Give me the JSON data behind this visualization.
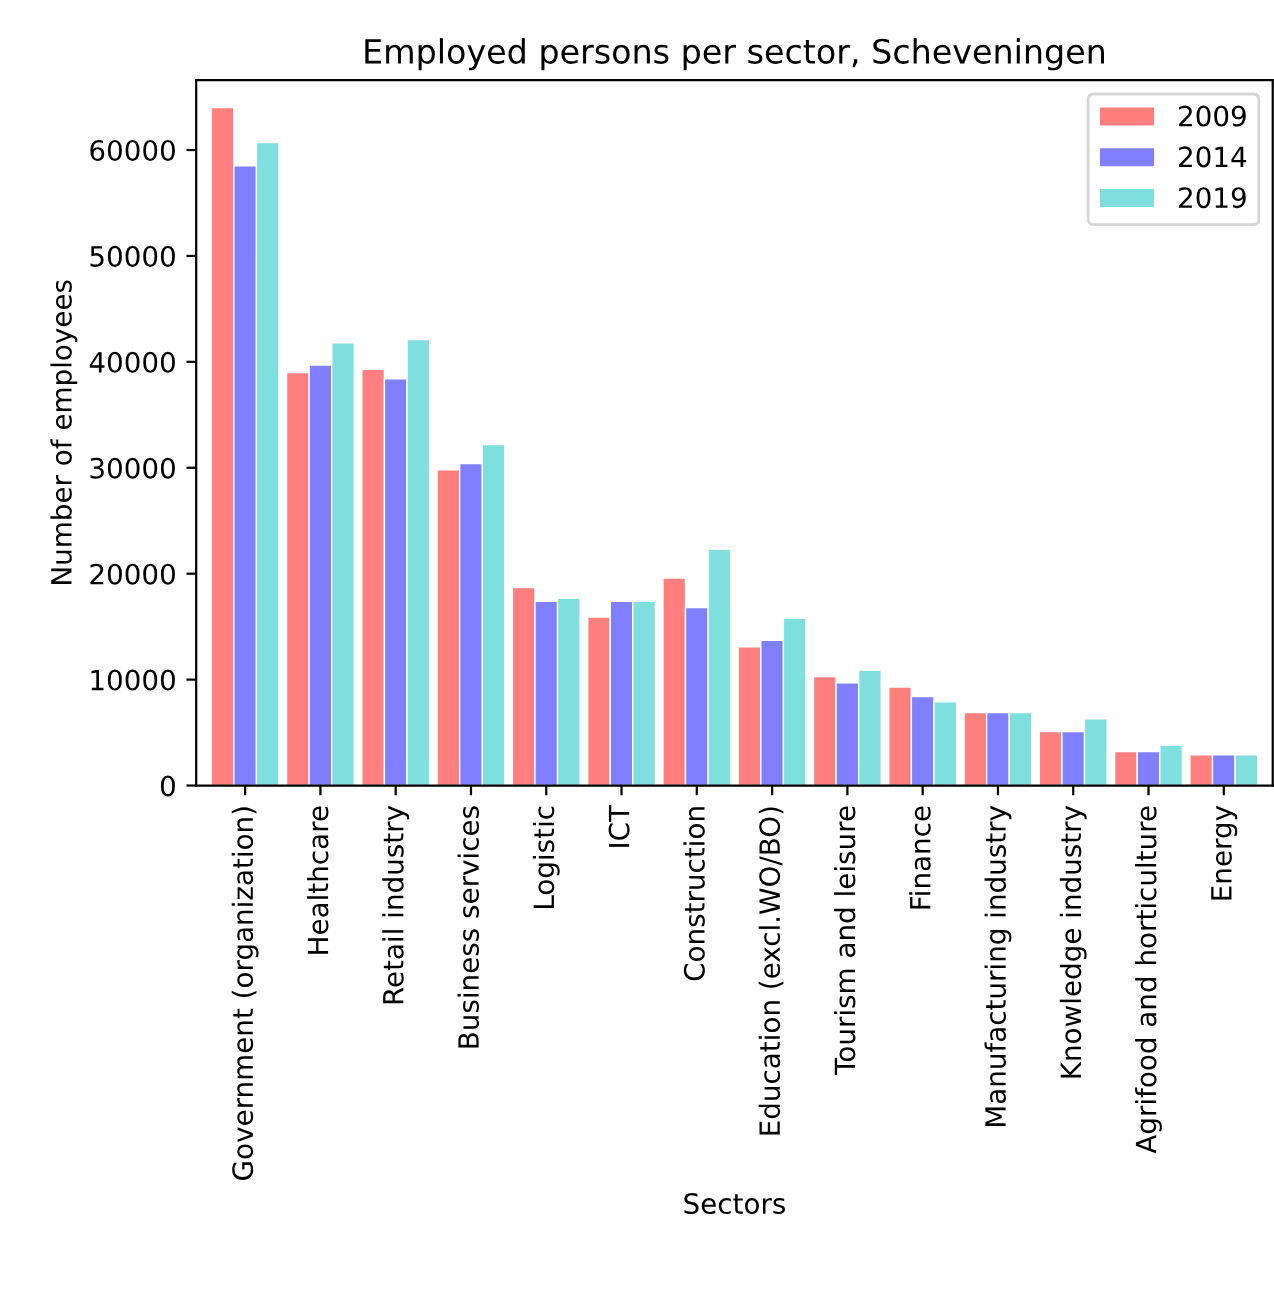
{
  "chart_data": {
    "type": "bar",
    "title": "Employed persons per sector, Scheveningen",
    "xlabel": "Sectors",
    "ylabel": "Number of employees",
    "categories": [
      "Government (organization)",
      "Healthcare",
      "Retail industry",
      "Business services",
      "Logistic",
      "ICT",
      "Construction",
      "Education (excl.WO/BO)",
      "Tourism and leisure",
      "Finance",
      "Manufacturing industry",
      "Knowledge industry",
      "Agrifood and horticulture",
      "Energy"
    ],
    "series": [
      {
        "name": "2009",
        "color": "#ff7f7f",
        "values": [
          64000,
          39000,
          39300,
          29800,
          18700,
          15900,
          19600,
          13100,
          10300,
          9300,
          6900,
          5100,
          3200,
          2900
        ]
      },
      {
        "name": "2014",
        "color": "#7f7fff",
        "values": [
          58500,
          39700,
          38400,
          30400,
          17400,
          17400,
          16800,
          13700,
          9700,
          8400,
          6900,
          5100,
          3200,
          2900
        ]
      },
      {
        "name": "2019",
        "color": "#7fdfdf",
        "values": [
          60700,
          41800,
          42100,
          32200,
          17700,
          17400,
          22300,
          15800,
          10900,
          7900,
          6900,
          6300,
          3800,
          2900
        ]
      }
    ],
    "ylim": [
      0,
      66600
    ],
    "yticks": [
      0,
      10000,
      20000,
      30000,
      40000,
      50000,
      60000
    ],
    "grid": false,
    "legend": "top right"
  }
}
